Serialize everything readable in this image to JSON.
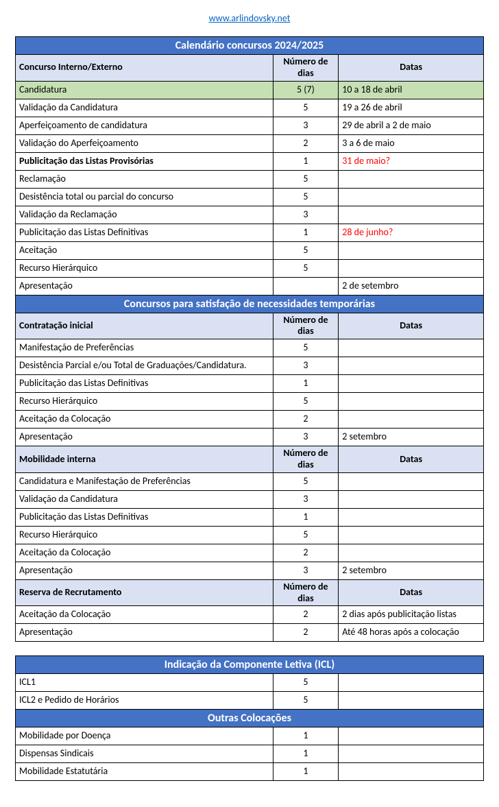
{
  "site_url": "www.arlindovsky.net",
  "tables": [
    {
      "title": "Calendário concursos 2024/2025",
      "sections": [
        {
          "header": [
            "Concurso Interno/Externo",
            "Número de dias",
            "Datas"
          ],
          "rows": [
            {
              "cells": [
                "Candidatura",
                "5 (7)",
                "10 a 18 de abril"
              ],
              "green": true
            },
            {
              "cells": [
                "Validação da Candidatura",
                "5",
                "19 a 26 de abril"
              ]
            },
            {
              "cells": [
                "Aperfeiçoamento de candidatura",
                "3",
                "29 de abril a 2 de maio"
              ]
            },
            {
              "cells": [
                "Validação do Aperfeiçoamento",
                "2",
                "3 a 6 de maio"
              ]
            },
            {
              "cells": [
                "Publicitação das Listas Provisórias",
                "1",
                "31 de maio?"
              ],
              "bold_first": true,
              "red_last": true
            },
            {
              "cells": [
                "Reclamação",
                "5",
                ""
              ]
            },
            {
              "cells": [
                "Desistência total ou parcial do concurso",
                "5",
                ""
              ]
            },
            {
              "cells": [
                "Validação da Reclamação",
                "3",
                ""
              ]
            },
            {
              "cells": [
                "Publicitação das Listas Definitivas",
                "1",
                "28 de junho?"
              ],
              "red_last": true
            },
            {
              "cells": [
                "Aceitação",
                "5",
                ""
              ]
            },
            {
              "cells": [
                "Recurso Hierárquico",
                "5",
                ""
              ]
            },
            {
              "cells": [
                "Apresentação",
                "",
                "2 de setembro"
              ]
            }
          ]
        }
      ]
    },
    {
      "title": "Concursos para satisfação de necessidades temporárias",
      "continues_prev": true,
      "sections": [
        {
          "header": [
            "Contratação inicial",
            "Número de dias",
            "Datas"
          ],
          "rows": [
            {
              "cells": [
                "Manifestação de Preferências",
                "5",
                ""
              ]
            },
            {
              "cells": [
                "Desistência Parcial e/ou Total de Graduações/Candidatura.",
                "3",
                ""
              ]
            },
            {
              "cells": [
                "Publicitação das Listas Definitivas",
                "1",
                ""
              ]
            },
            {
              "cells": [
                "Recurso Hierárquico",
                "5",
                ""
              ]
            },
            {
              "cells": [
                "Aceitação da Colocação",
                "2",
                ""
              ]
            },
            {
              "cells": [
                "Apresentação",
                "3",
                "2 setembro"
              ]
            }
          ]
        },
        {
          "header": [
            "Mobilidade interna",
            "Número de dias",
            "Datas"
          ],
          "rows": [
            {
              "cells": [
                "Candidatura e Manifestação de Preferências",
                "5",
                ""
              ]
            },
            {
              "cells": [
                "Validação da Candidatura",
                "3",
                ""
              ]
            },
            {
              "cells": [
                "Publicitação das Listas Definitivas",
                "1",
                ""
              ]
            },
            {
              "cells": [
                "Recurso Hierárquico",
                "5",
                ""
              ]
            },
            {
              "cells": [
                "Aceitação da Colocação",
                "2",
                ""
              ]
            },
            {
              "cells": [
                "Apresentação",
                "3",
                "2 setembro"
              ]
            }
          ]
        },
        {
          "header": [
            "Reserva de Recrutamento",
            "Número de dias",
            "Datas"
          ],
          "rows": [
            {
              "cells": [
                "Aceitação da Colocação",
                "2",
                "2 dias após publicitação listas"
              ]
            },
            {
              "cells": [
                "Apresentação",
                "2",
                "Até 48 horas após a colocação"
              ]
            }
          ]
        }
      ]
    },
    {
      "title": "Indicação da Componente Letiva (ICL)",
      "sections": [
        {
          "rows": [
            {
              "cells": [
                "ICL1",
                "5",
                ""
              ]
            },
            {
              "cells": [
                "ICL2 e Pedido de Horários",
                "5",
                ""
              ]
            }
          ]
        }
      ]
    },
    {
      "title": "Outras Colocações",
      "continues_prev": true,
      "sections": [
        {
          "rows": [
            {
              "cells": [
                "Mobilidade por Doença",
                "1",
                ""
              ]
            },
            {
              "cells": [
                "Dispensas Sindicais",
                "1",
                ""
              ]
            },
            {
              "cells": [
                "Mobilidade Estatutária",
                "1",
                ""
              ]
            }
          ]
        }
      ]
    }
  ],
  "colors": {
    "band_bg": "#4472c4",
    "band_text": "#ffffff",
    "header_bg": "#d9e1f2",
    "green_bg": "#c6e0b4",
    "link": "#0563c1",
    "red": "#ff0000"
  }
}
